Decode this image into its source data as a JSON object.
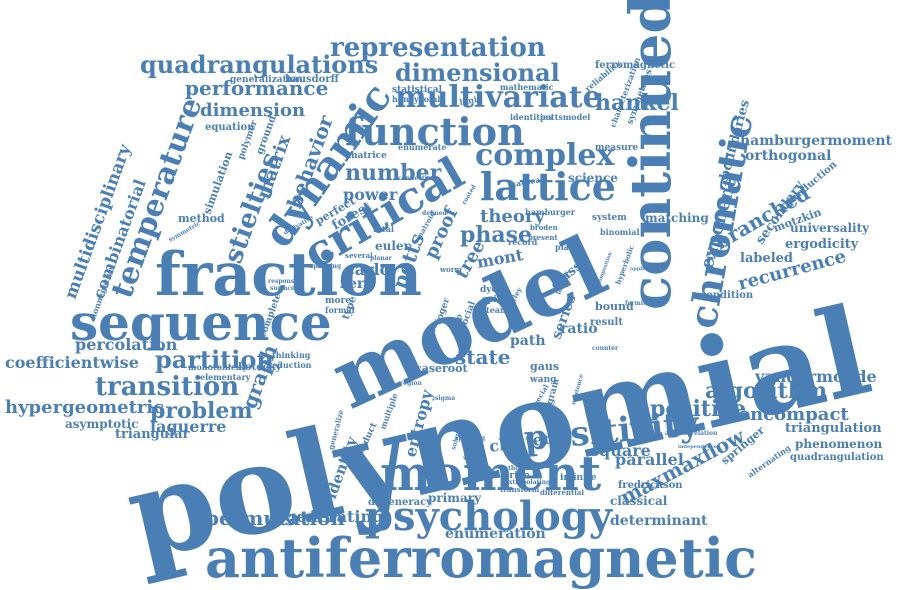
{
  "colors": {
    "word": "#4a7fb5",
    "background": "#ffffff"
  },
  "words": [
    {
      "id": "polynomial",
      "text": "polynomial"
    },
    {
      "id": "model",
      "text": "model"
    },
    {
      "id": "antiferromagnetic",
      "text": "antiferromagnetic"
    },
    {
      "id": "fraction",
      "text": "fraction"
    },
    {
      "id": "sequence",
      "text": "sequence"
    },
    {
      "id": "continued",
      "text": "continued"
    },
    {
      "id": "moment",
      "text": "moment"
    },
    {
      "id": "critical",
      "text": "critical"
    },
    {
      "id": "lattice",
      "text": "lattice"
    },
    {
      "id": "function",
      "text": "function"
    },
    {
      "id": "psychology",
      "text": "psychology"
    },
    {
      "id": "positivity",
      "text": "positivity"
    },
    {
      "id": "chromatic",
      "text": "chromatic"
    },
    {
      "id": "dynamic",
      "text": "dynamic"
    },
    {
      "id": "multivariate",
      "text": "multivariate"
    },
    {
      "id": "complex",
      "text": "complex"
    },
    {
      "id": "representation",
      "text": "representation"
    },
    {
      "id": "dimensional",
      "text": "dimensional"
    },
    {
      "id": "quadrangulations",
      "text": "quadrangulations"
    },
    {
      "id": "performance",
      "text": "performance"
    },
    {
      "id": "dimension",
      "text": "dimension"
    },
    {
      "id": "temperature",
      "text": "temperature"
    },
    {
      "id": "stieltjes",
      "text": "stieltjes"
    },
    {
      "id": "partition",
      "text": "partition"
    },
    {
      "id": "transition",
      "text": "transition"
    },
    {
      "id": "problem",
      "text": "problem"
    },
    {
      "id": "hypergeometric",
      "text": "hypergeometric"
    },
    {
      "id": "coefficientwise",
      "text": "coefficientwise"
    },
    {
      "id": "percolation",
      "text": "percolation"
    },
    {
      "id": "multidisciplinary",
      "text": "multidisciplinary"
    },
    {
      "id": "combinatorial",
      "text": "combinatorial"
    },
    {
      "id": "matrix",
      "text": "matrix"
    },
    {
      "id": "behavior",
      "text": "behavior"
    },
    {
      "id": "number",
      "text": "number"
    },
    {
      "id": "hankel",
      "text": "hankel"
    },
    {
      "id": "positive",
      "text": "positive"
    },
    {
      "id": "algorithm",
      "text": "algorithm"
    },
    {
      "id": "vandermonde",
      "text": "vandermonde"
    },
    {
      "id": "noncompact",
      "text": "noncompact"
    },
    {
      "id": "maxmaxflow",
      "text": "maxmaxflow"
    },
    {
      "id": "permutation",
      "text": "permutation"
    },
    {
      "id": "generating",
      "text": "generating"
    },
    {
      "id": "enumeration",
      "text": "enumeration"
    },
    {
      "id": "determinant",
      "text": "determinant"
    },
    {
      "id": "parallel",
      "text": "parallel"
    },
    {
      "id": "square",
      "text": "square"
    },
    {
      "id": "branched",
      "text": "branched"
    },
    {
      "id": "recurrence",
      "text": "recurrence"
    },
    {
      "id": "exponent",
      "text": "exponent"
    },
    {
      "id": "hamburgermoment",
      "text": "hamburgermoment"
    },
    {
      "id": "orthogonal",
      "text": "orthogonal"
    },
    {
      "id": "triangulation",
      "text": "triangulation"
    },
    {
      "id": "phenomenon",
      "text": "phenomenon"
    },
    {
      "id": "quadrangulation",
      "text": "quadrangulation"
    },
    {
      "id": "laguerre",
      "text": "laguerre"
    },
    {
      "id": "triangular",
      "text": "triangular"
    },
    {
      "id": "asymptotic",
      "text": "asymptotic"
    },
    {
      "id": "graph",
      "text": "graph"
    },
    {
      "id": "phase",
      "text": "phase"
    },
    {
      "id": "theory",
      "text": "theory"
    },
    {
      "id": "state",
      "text": "state"
    },
    {
      "id": "cluster",
      "text": "cluster"
    },
    {
      "id": "entropy",
      "text": "entropy"
    },
    {
      "id": "identity",
      "text": "identity"
    },
    {
      "id": "power",
      "text": "power"
    },
    {
      "id": "zero",
      "text": "zero"
    },
    {
      "id": "carlo",
      "text": "carlo"
    },
    {
      "id": "euler",
      "text": "euler"
    },
    {
      "id": "forest",
      "text": "forest"
    },
    {
      "id": "perfect",
      "text": "perfect"
    },
    {
      "id": "tree",
      "text": "tree"
    },
    {
      "id": "mont",
      "text": "mont"
    },
    {
      "id": "proof",
      "text": "proof"
    },
    {
      "id": "potts",
      "text": "potts"
    },
    {
      "id": "science",
      "text": "science"
    },
    {
      "id": "matching",
      "text": "matching"
    },
    {
      "id": "boundaries",
      "text": "boundaries"
    },
    {
      "id": "secondary",
      "text": "secondary"
    },
    {
      "id": "ergodicity",
      "text": "ergodicity"
    },
    {
      "id": "labeled",
      "text": "labeled"
    },
    {
      "id": "motzkin",
      "text": "motzkin"
    },
    {
      "id": "universality",
      "text": "universality"
    },
    {
      "id": "condition",
      "text": "condition"
    },
    {
      "id": "production",
      "text": "production"
    },
    {
      "id": "ferromagnetic",
      "text": "ferromagnetic"
    },
    {
      "id": "reliability",
      "text": "reliability"
    },
    {
      "id": "characterization",
      "text": "characterization"
    },
    {
      "id": "symmetries",
      "text": "symmetries"
    },
    {
      "id": "statistical",
      "text": "statistical"
    },
    {
      "id": "honeycomb",
      "text": "honeycomb"
    },
    {
      "id": "hausdorff",
      "text": "hausdorff"
    },
    {
      "id": "generalization",
      "text": "generalization"
    },
    {
      "id": "mathematic",
      "text": "mathematic"
    },
    {
      "id": "identities",
      "text": "identities"
    },
    {
      "id": "pottsmodel",
      "text": "pottsmodel"
    },
    {
      "id": "measure",
      "text": "measure"
    },
    {
      "id": "matrice",
      "text": "matrice"
    },
    {
      "id": "enumerate",
      "text": "enumerate"
    },
    {
      "id": "simulation",
      "text": "simulation"
    },
    {
      "id": "method",
      "text": "method"
    },
    {
      "id": "polymer",
      "text": "polymer"
    },
    {
      "id": "ground",
      "text": "ground"
    },
    {
      "id": "equation",
      "text": "equation"
    },
    {
      "id": "complete",
      "text": "complete"
    },
    {
      "id": "kotecky",
      "text": "kotecký"
    },
    {
      "id": "monotonicity",
      "text": "monotonicity"
    },
    {
      "id": "elementary",
      "text": "elementary"
    },
    {
      "id": "thinking",
      "text": "thinking"
    },
    {
      "id": "reduction",
      "text": "reduction"
    },
    {
      "id": "classical",
      "text": "classical"
    },
    {
      "id": "primary",
      "text": "primary"
    },
    {
      "id": "degeneracy",
      "text": "degeneracy"
    },
    {
      "id": "fredrickson",
      "text": "fredrickson"
    },
    {
      "id": "springer",
      "text": "springer"
    },
    {
      "id": "alternating",
      "text": "alternating"
    },
    {
      "id": "infinite",
      "text": "infinite"
    },
    {
      "id": "eulerian",
      "text": "eulerian"
    },
    {
      "id": "ratio",
      "text": "ratio"
    },
    {
      "id": "result",
      "text": "result"
    },
    {
      "id": "series",
      "text": "series"
    },
    {
      "id": "bound",
      "text": "bound"
    },
    {
      "id": "class",
      "text": "class"
    },
    {
      "id": "path",
      "text": "path"
    },
    {
      "id": "case",
      "text": "case"
    },
    {
      "id": "root",
      "text": "root"
    },
    {
      "id": "gaus",
      "text": "gaus"
    },
    {
      "id": "wang",
      "text": "wang"
    },
    {
      "id": "system",
      "text": "system"
    },
    {
      "id": "binomial",
      "text": "binomial"
    },
    {
      "id": "plane",
      "text": "plane"
    },
    {
      "id": "hamburger",
      "text": "hamburger"
    },
    {
      "id": "record",
      "text": "record"
    },
    {
      "id": "dyck",
      "text": "dyck"
    },
    {
      "id": "spin",
      "text": "spin"
    },
    {
      "id": "team",
      "text": "team"
    },
    {
      "id": "more",
      "text": "more"
    },
    {
      "id": "formal",
      "text": "formal"
    },
    {
      "id": "social",
      "text": "social"
    },
    {
      "id": "total",
      "text": "total"
    },
    {
      "id": "type",
      "text": "type"
    },
    {
      "id": "finite",
      "text": "finite"
    },
    {
      "id": "mathca",
      "text": "mathca"
    },
    {
      "id": "broden",
      "text": "broden"
    },
    {
      "id": "present",
      "text": "present"
    },
    {
      "id": "limit",
      "text": "limit"
    },
    {
      "id": "connection",
      "text": "connection"
    },
    {
      "id": "matroid",
      "text": "matroid"
    },
    {
      "id": "worm",
      "text": "worm"
    },
    {
      "id": "several",
      "text": "several"
    },
    {
      "id": "spanning",
      "text": "spanning"
    },
    {
      "id": "rooted",
      "text": "rooted"
    },
    {
      "id": "diagram",
      "text": "diagram"
    },
    {
      "id": "special",
      "text": "special"
    },
    {
      "id": "transform",
      "text": "transform"
    },
    {
      "id": "differential",
      "text": "differential"
    },
    {
      "id": "existence",
      "text": "existence"
    },
    {
      "id": "speeding",
      "text": "speeding"
    },
    {
      "id": "product",
      "text": "product"
    },
    {
      "id": "multiple",
      "text": "multiple"
    },
    {
      "id": "generalize",
      "text": "generalize"
    },
    {
      "id": "cayley",
      "text": "cayley"
    },
    {
      "id": "defined",
      "text": "defined"
    },
    {
      "id": "derivative",
      "text": "derivative"
    },
    {
      "id": "nonnegative",
      "text": "nonnegative"
    },
    {
      "id": "symmetric",
      "text": "symmetric"
    },
    {
      "id": "surface",
      "text": "surface"
    },
    {
      "id": "response",
      "text": "response"
    },
    {
      "id": "planar",
      "text": "planar"
    },
    {
      "id": "region",
      "text": "region"
    },
    {
      "id": "sigma",
      "text": "sigma"
    },
    {
      "id": "extrapolating",
      "text": "extrapolating"
    },
    {
      "id": "pathdata",
      "text": "pathdata"
    },
    {
      "id": "roger",
      "text": "roger"
    },
    {
      "id": "strip",
      "text": "strip"
    },
    {
      "id": "factor",
      "text": "factor"
    },
    {
      "id": "lambda",
      "text": "lambda"
    },
    {
      "id": "hyperbolic",
      "text": "hyperbolic"
    },
    {
      "id": "application",
      "text": "application"
    },
    {
      "id": "fermionic",
      "text": "fermionic"
    },
    {
      "id": "composition",
      "text": "composition"
    },
    {
      "id": "autocorrelation",
      "text": "autocorrelation"
    },
    {
      "id": "independence",
      "text": "independence"
    },
    {
      "id": "subgraph",
      "text": "subgraph"
    },
    {
      "id": "counter",
      "text": "counter"
    }
  ]
}
